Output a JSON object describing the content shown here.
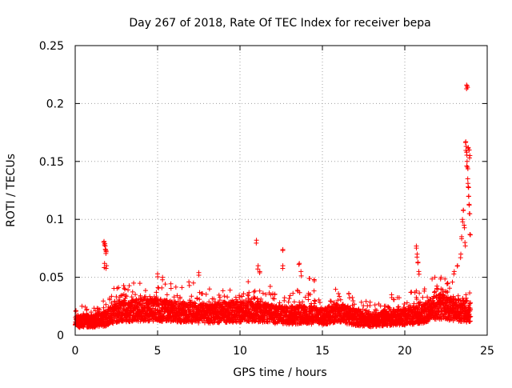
{
  "chart_data": {
    "type": "scatter",
    "title": "Day 267 of 2018, Rate Of TEC Index for receiver bepa",
    "xlabel": "GPS time / hours",
    "ylabel": "ROTI / TECUs",
    "xlim": [
      0,
      25
    ],
    "ylim": [
      0,
      0.25
    ],
    "x_ticks": [
      0,
      5,
      10,
      15,
      20,
      25
    ],
    "x_tick_labels": [
      "0",
      "5",
      "10",
      "15",
      "20",
      "25"
    ],
    "y_ticks": [
      0,
      0.05,
      0.1,
      0.15,
      0.2,
      0.25
    ],
    "y_tick_labels": [
      "0",
      "0.05",
      "0.1",
      "0.15",
      "0.2",
      "0.25"
    ],
    "grid": true,
    "marker": "+",
    "color": "#ff0000",
    "series": [
      {
        "name": "ROTI",
        "baseline": [
          [
            0.0,
            0.012
          ],
          [
            1.0,
            0.012
          ],
          [
            1.8,
            0.014
          ],
          [
            2.5,
            0.02
          ],
          [
            4.0,
            0.022
          ],
          [
            5.0,
            0.022
          ],
          [
            6.0,
            0.02
          ],
          [
            7.0,
            0.02
          ],
          [
            8.0,
            0.018
          ],
          [
            9.0,
            0.02
          ],
          [
            10.0,
            0.02
          ],
          [
            11.0,
            0.021
          ],
          [
            12.0,
            0.018
          ],
          [
            13.0,
            0.017
          ],
          [
            14.0,
            0.018
          ],
          [
            15.0,
            0.016
          ],
          [
            16.0,
            0.02
          ],
          [
            17.0,
            0.015
          ],
          [
            18.0,
            0.013
          ],
          [
            19.0,
            0.015
          ],
          [
            20.0,
            0.016
          ],
          [
            21.0,
            0.018
          ],
          [
            22.0,
            0.025
          ],
          [
            23.0,
            0.022
          ],
          [
            24.0,
            0.02
          ]
        ],
        "spikes": [
          [
            1.75,
            0.081
          ],
          [
            1.8,
            0.079
          ],
          [
            1.82,
            0.077
          ],
          [
            1.85,
            0.074
          ],
          [
            1.88,
            0.072
          ],
          [
            1.78,
            0.062
          ],
          [
            1.9,
            0.06
          ],
          [
            5.0,
            0.053
          ],
          [
            5.3,
            0.05
          ],
          [
            7.5,
            0.054
          ],
          [
            6.9,
            0.046
          ],
          [
            11.0,
            0.082
          ],
          [
            11.1,
            0.06
          ],
          [
            11.2,
            0.055
          ],
          [
            12.6,
            0.074
          ],
          [
            12.6,
            0.06
          ],
          [
            13.6,
            0.062
          ],
          [
            13.7,
            0.055
          ],
          [
            14.2,
            0.049
          ],
          [
            14.5,
            0.048
          ],
          [
            16.6,
            0.036
          ],
          [
            19.2,
            0.035
          ],
          [
            20.7,
            0.077
          ],
          [
            20.75,
            0.07
          ],
          [
            20.8,
            0.063
          ],
          [
            20.85,
            0.055
          ],
          [
            21.2,
            0.04
          ],
          [
            22.2,
            0.05
          ],
          [
            22.6,
            0.045
          ],
          [
            23.0,
            0.055
          ],
          [
            23.2,
            0.06
          ],
          [
            23.4,
            0.07
          ],
          [
            23.45,
            0.085
          ],
          [
            23.5,
            0.1
          ],
          [
            23.55,
            0.108
          ],
          [
            23.6,
            0.095
          ],
          [
            23.65,
            0.08
          ],
          [
            23.7,
            0.167
          ],
          [
            23.72,
            0.163
          ],
          [
            23.75,
            0.158
          ],
          [
            23.78,
            0.15
          ],
          [
            23.8,
            0.145
          ],
          [
            23.82,
            0.135
          ],
          [
            23.85,
            0.128
          ],
          [
            23.88,
            0.12
          ],
          [
            23.9,
            0.113
          ],
          [
            23.92,
            0.105
          ],
          [
            23.75,
            0.216
          ],
          [
            23.78,
            0.215
          ],
          [
            23.85,
            0.162
          ],
          [
            23.9,
            0.16
          ],
          [
            23.95,
            0.155
          ],
          [
            23.95,
            0.087
          ]
        ]
      }
    ]
  }
}
